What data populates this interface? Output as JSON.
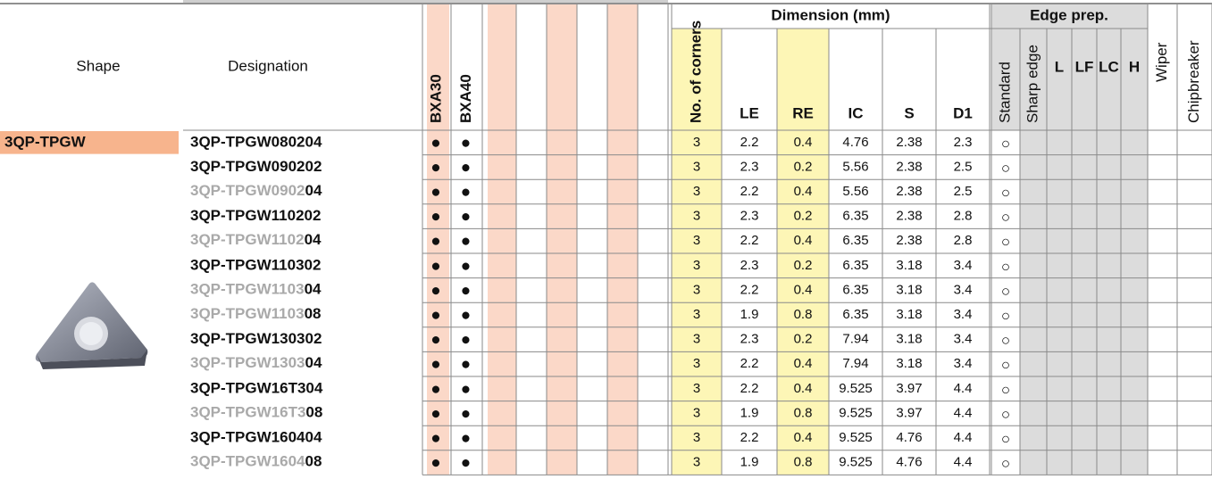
{
  "header": {
    "shape": "Shape",
    "designation": "Designation",
    "grades": [
      "BXA30",
      "BXA40"
    ],
    "dimension": "Dimension (mm)",
    "dimension_columns": [
      "No. of corners",
      "LE",
      "RE",
      "IC",
      "S",
      "D1"
    ],
    "edge_prep": "Edge prep.",
    "edge_columns": [
      "Standard",
      "Sharp edge",
      "L",
      "LF",
      "LC",
      "H"
    ],
    "wiper": "Wiper",
    "chipbreaker": "Chipbreaker"
  },
  "shape_name": "3QP-TPGW",
  "rows": [
    {
      "designation": "3QP-TPGW080204",
      "grades": [
        "●",
        "●"
      ],
      "dimensions": [
        3,
        2.2,
        0.4,
        4.76,
        2.38,
        2.3
      ],
      "standard": "○"
    },
    {
      "designation": "3QP-TPGW090202",
      "grades": [
        "●",
        "●"
      ],
      "dimensions": [
        3,
        2.3,
        0.2,
        5.56,
        2.38,
        2.5
      ],
      "standard": "○"
    },
    {
      "designation": [
        "3QP-TPGW0902",
        "04"
      ],
      "grades": [
        "●",
        "●"
      ],
      "dimensions": [
        3,
        2.2,
        0.4,
        5.56,
        2.38,
        2.5
      ],
      "standard": "○"
    },
    {
      "designation": "3QP-TPGW110202",
      "grades": [
        "●",
        "●"
      ],
      "dimensions": [
        3,
        2.3,
        0.2,
        6.35,
        2.38,
        2.8
      ],
      "standard": "○"
    },
    {
      "designation": [
        "3QP-TPGW1102",
        "04"
      ],
      "grades": [
        "●",
        "●"
      ],
      "dimensions": [
        3,
        2.2,
        0.4,
        6.35,
        2.38,
        2.8
      ],
      "standard": "○"
    },
    {
      "designation": "3QP-TPGW110302",
      "grades": [
        "●",
        "●"
      ],
      "dimensions": [
        3,
        2.3,
        0.2,
        6.35,
        3.18,
        3.4
      ],
      "standard": "○"
    },
    {
      "designation": [
        "3QP-TPGW1103",
        "04"
      ],
      "grades": [
        "●",
        "●"
      ],
      "dimensions": [
        3,
        2.2,
        0.4,
        6.35,
        3.18,
        3.4
      ],
      "standard": "○"
    },
    {
      "designation": [
        "3QP-TPGW1103",
        "08"
      ],
      "grades": [
        "●",
        "●"
      ],
      "dimensions": [
        3,
        1.9,
        0.8,
        6.35,
        3.18,
        3.4
      ],
      "standard": "○"
    },
    {
      "designation": "3QP-TPGW130302",
      "grades": [
        "●",
        "●"
      ],
      "dimensions": [
        3,
        2.3,
        0.2,
        7.94,
        3.18,
        3.4
      ],
      "standard": "○"
    },
    {
      "designation": [
        "3QP-TPGW1303",
        "04"
      ],
      "grades": [
        "●",
        "●"
      ],
      "dimensions": [
        3,
        2.2,
        0.4,
        7.94,
        3.18,
        3.4
      ],
      "standard": "○"
    },
    {
      "designation": "3QP-TPGW16T304",
      "grades": [
        "●",
        "●"
      ],
      "dimensions": [
        3,
        2.2,
        0.4,
        9.525,
        3.97,
        4.4
      ],
      "standard": "○"
    },
    {
      "designation": [
        "3QP-TPGW16T3",
        "08"
      ],
      "grades": [
        "●",
        "●"
      ],
      "dimensions": [
        3,
        1.9,
        0.8,
        9.525,
        3.97,
        4.4
      ],
      "standard": "○"
    },
    {
      "designation": "3QP-TPGW160404",
      "grades": [
        "●",
        "●"
      ],
      "dimensions": [
        3,
        2.2,
        0.4,
        9.525,
        4.76,
        4.4
      ],
      "standard": "○"
    },
    {
      "designation": [
        "3QP-TPGW1604",
        "08"
      ],
      "grades": [
        "●",
        "●"
      ],
      "dimensions": [
        3,
        1.9,
        0.8,
        9.525,
        4.76,
        4.4
      ],
      "standard": "○"
    }
  ]
}
